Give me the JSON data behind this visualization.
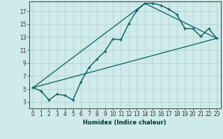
{
  "title": "",
  "xlabel": "Humidex (Indice chaleur)",
  "bg_color": "#ceeaea",
  "grid_color": "#b8d4d4",
  "line_color": "#006060",
  "xlim": [
    -0.5,
    23.5
  ],
  "ylim": [
    2.0,
    18.5
  ],
  "xticks": [
    0,
    1,
    2,
    3,
    4,
    5,
    6,
    7,
    8,
    9,
    10,
    11,
    12,
    13,
    14,
    15,
    16,
    17,
    18,
    19,
    20,
    21,
    22,
    23
  ],
  "yticks": [
    3,
    5,
    7,
    9,
    11,
    13,
    15,
    17
  ],
  "series1_x": [
    0,
    1,
    2,
    3,
    4,
    5,
    6,
    7,
    8,
    9,
    10,
    11,
    12,
    13,
    14,
    15,
    16,
    17,
    18,
    19,
    20,
    21,
    22,
    23
  ],
  "series1_y": [
    5.2,
    4.7,
    3.3,
    4.2,
    4.0,
    3.3,
    6.1,
    8.3,
    9.6,
    10.8,
    12.7,
    12.6,
    15.1,
    17.1,
    18.2,
    18.2,
    17.9,
    17.3,
    16.5,
    14.3,
    14.3,
    13.1,
    14.3,
    12.8
  ],
  "series2_x": [
    0,
    23
  ],
  "series2_y": [
    5.2,
    12.8
  ],
  "series3_x": [
    0,
    14,
    23
  ],
  "series3_y": [
    5.2,
    18.2,
    12.8
  ],
  "xlabel_fontsize": 6.0,
  "tick_fontsize": 5.5
}
